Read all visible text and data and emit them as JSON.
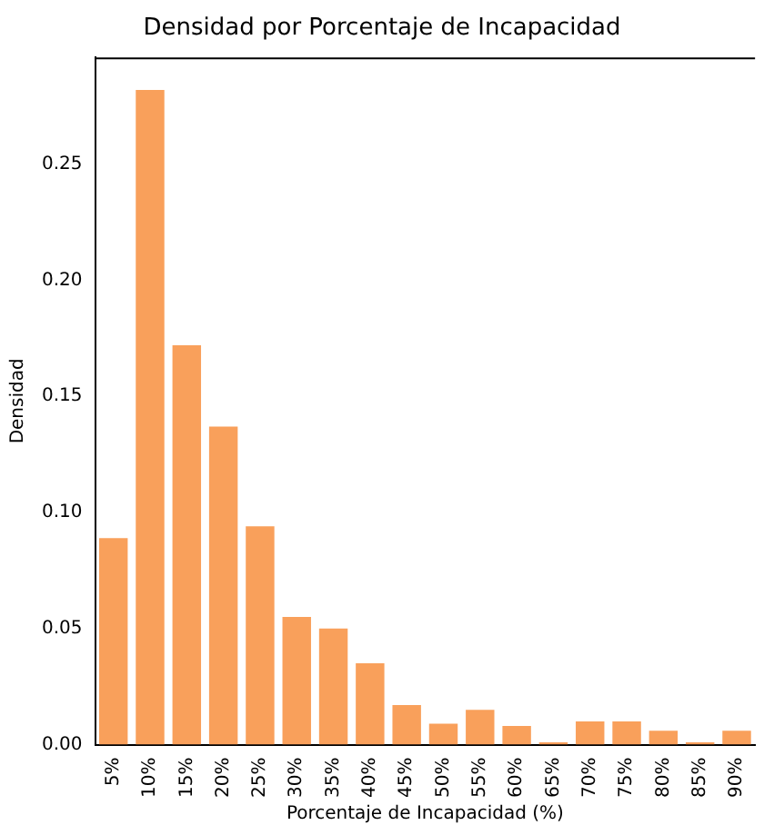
{
  "chart_data": {
    "type": "bar",
    "title": "Densidad por Porcentaje de Incapacidad",
    "xlabel": "Porcentaje de Incapacidad (%)",
    "ylabel": "Densidad",
    "categories": [
      "5%",
      "10%",
      "15%",
      "20%",
      "25%",
      "30%",
      "35%",
      "40%",
      "45%",
      "50%",
      "55%",
      "60%",
      "65%",
      "70%",
      "75%",
      "80%",
      "85%",
      "90%"
    ],
    "values": [
      0.089,
      0.282,
      0.172,
      0.137,
      0.094,
      0.055,
      0.05,
      0.035,
      0.017,
      0.009,
      0.015,
      0.008,
      0.001,
      0.01,
      0.01,
      0.006,
      0.001,
      0.006
    ],
    "color": "#f9a05b",
    "ylim": [
      0,
      0.296
    ],
    "yticks": [
      {
        "value": 0,
        "label": "0.00"
      },
      {
        "value": 0.05,
        "label": "0.05"
      },
      {
        "value": 0.1,
        "label": "0.10"
      },
      {
        "value": 0.15,
        "label": "0.15"
      },
      {
        "value": 0.2,
        "label": "0.20"
      },
      {
        "value": 0.25,
        "label": "0.25"
      }
    ],
    "grid": false,
    "legend": false
  }
}
